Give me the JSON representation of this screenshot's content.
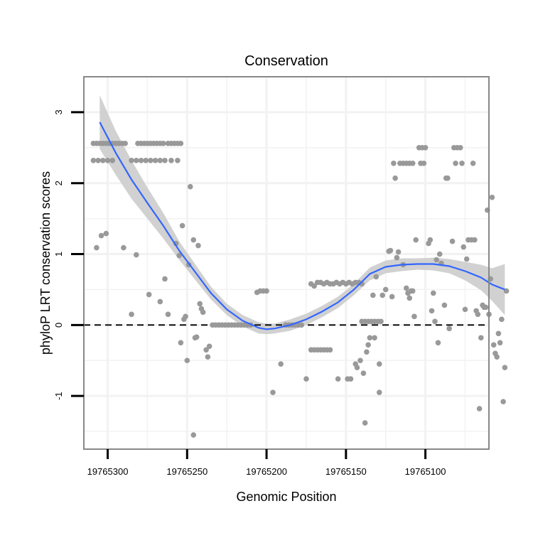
{
  "chart_data": {
    "type": "scatter",
    "title": "Conservation",
    "xlabel": "Genomic Position",
    "ylabel": "phyloP LRT conservation scores",
    "x_reversed": true,
    "xlim": [
      19765315,
      19765060
    ],
    "ylim": [
      -1.75,
      3.5
    ],
    "x_ticks": [
      19765300,
      19765250,
      19765200,
      19765150,
      19765100
    ],
    "x_tick_labels": [
      "19765300",
      "19765250",
      "19765200",
      "19765150",
      "19765100"
    ],
    "y_ticks": [
      -1,
      0,
      1,
      2,
      3
    ],
    "y_tick_labels": [
      "-1",
      "0",
      "1",
      "2",
      "3"
    ],
    "reference_line": {
      "y": 0,
      "style": "dashed"
    },
    "colors": {
      "points": "#999999",
      "smooth_line": "#3366ff",
      "ci_band": "#cccccc",
      "panel_border": "#888888",
      "grid": "#f2f2f2"
    },
    "points": [
      [
        19765309,
        2.56
      ],
      [
        19765307,
        2.56
      ],
      [
        19765305,
        2.56
      ],
      [
        19765303,
        2.56
      ],
      [
        19765301,
        2.56
      ],
      [
        19765299,
        2.56
      ],
      [
        19765297,
        2.56
      ],
      [
        19765295,
        2.56
      ],
      [
        19765293,
        2.56
      ],
      [
        19765291,
        2.56
      ],
      [
        19765289,
        2.56
      ],
      [
        19765309,
        2.32
      ],
      [
        19765306,
        2.32
      ],
      [
        19765303,
        2.32
      ],
      [
        19765300,
        2.32
      ],
      [
        19765297,
        2.32
      ],
      [
        19765281,
        2.56
      ],
      [
        19765279,
        2.56
      ],
      [
        19765277,
        2.56
      ],
      [
        19765275,
        2.56
      ],
      [
        19765273,
        2.56
      ],
      [
        19765271,
        2.56
      ],
      [
        19765269,
        2.56
      ],
      [
        19765267,
        2.56
      ],
      [
        19765265,
        2.56
      ],
      [
        19765262,
        2.56
      ],
      [
        19765260,
        2.56
      ],
      [
        19765258,
        2.56
      ],
      [
        19765256,
        2.56
      ],
      [
        19765254,
        2.56
      ],
      [
        19765285,
        2.32
      ],
      [
        19765282,
        2.32
      ],
      [
        19765279,
        2.32
      ],
      [
        19765276,
        2.32
      ],
      [
        19765273,
        2.32
      ],
      [
        19765270,
        2.32
      ],
      [
        19765267,
        2.32
      ],
      [
        19765264,
        2.32
      ],
      [
        19765260,
        2.32
      ],
      [
        19765256,
        2.32
      ],
      [
        19765307,
        1.09
      ],
      [
        19765304,
        1.26
      ],
      [
        19765301,
        1.29
      ],
      [
        19765290,
        1.09
      ],
      [
        19765282,
        0.99
      ],
      [
        19765285,
        0.15
      ],
      [
        19765274,
        0.43
      ],
      [
        19765267,
        0.33
      ],
      [
        19765264,
        0.65
      ],
      [
        19765262,
        0.15
      ],
      [
        19765257,
        1.15
      ],
      [
        19765255,
        0.98
      ],
      [
        19765253,
        1.4
      ],
      [
        19765252,
        0.08
      ],
      [
        19765251,
        0.12
      ],
      [
        19765254,
        -0.25
      ],
      [
        19765250,
        -0.5
      ],
      [
        19765249,
        0.85
      ],
      [
        19765248,
        1.95
      ],
      [
        19765246,
        1.2
      ],
      [
        19765244,
        -0.17
      ],
      [
        19765245,
        -0.18
      ],
      [
        19765243,
        1.12
      ],
      [
        19765242,
        0.3
      ],
      [
        19765241,
        0.23
      ],
      [
        19765240,
        0.18
      ],
      [
        19765238,
        -0.35
      ],
      [
        19765237,
        -0.45
      ],
      [
        19765236,
        -0.3
      ],
      [
        19765246,
        -1.55
      ],
      [
        19765234,
        0
      ],
      [
        19765232,
        0
      ],
      [
        19765230,
        0
      ],
      [
        19765228,
        0
      ],
      [
        19765226,
        0
      ],
      [
        19765224,
        0
      ],
      [
        19765222,
        0
      ],
      [
        19765220,
        0
      ],
      [
        19765218,
        0
      ],
      [
        19765216,
        0
      ],
      [
        19765214,
        0
      ],
      [
        19765212,
        0
      ],
      [
        19765210,
        0
      ],
      [
        19765206,
        0.46
      ],
      [
        19765204,
        0.48
      ],
      [
        19765202,
        0.48
      ],
      [
        19765200,
        0.48
      ],
      [
        19765196,
        -0.95
      ],
      [
        19765191,
        -0.55
      ],
      [
        19765188,
        0
      ],
      [
        19765186,
        0
      ],
      [
        19765184,
        0
      ],
      [
        19765182,
        0
      ],
      [
        19765180,
        0
      ],
      [
        19765178,
        0
      ],
      [
        19765175,
        -0.76
      ],
      [
        19765172,
        0.58
      ],
      [
        19765170,
        0.55
      ],
      [
        19765168,
        0.6
      ],
      [
        19765166,
        0.6
      ],
      [
        19765164,
        0.58
      ],
      [
        19765162,
        0.6
      ],
      [
        19765160,
        0.58
      ],
      [
        19765158,
        0.58
      ],
      [
        19765156,
        0.6
      ],
      [
        19765154,
        0.58
      ],
      [
        19765152,
        0.6
      ],
      [
        19765150,
        0.58
      ],
      [
        19765148,
        0.6
      ],
      [
        19765146,
        0.58
      ],
      [
        19765144,
        0.6
      ],
      [
        19765142,
        0.6
      ],
      [
        19765140,
        0.58
      ],
      [
        19765172,
        -0.35
      ],
      [
        19765170,
        -0.35
      ],
      [
        19765168,
        -0.35
      ],
      [
        19765166,
        -0.35
      ],
      [
        19765164,
        -0.35
      ],
      [
        19765162,
        -0.35
      ],
      [
        19765160,
        -0.35
      ],
      [
        19765155,
        -0.76
      ],
      [
        19765149,
        -0.76
      ],
      [
        19765147,
        -0.76
      ],
      [
        19765144,
        -0.55
      ],
      [
        19765143,
        -0.6
      ],
      [
        19765141,
        -0.5
      ],
      [
        19765139,
        -0.68
      ],
      [
        19765138,
        -1.38
      ],
      [
        19765137,
        -0.38
      ],
      [
        19765136,
        -0.28
      ],
      [
        19765135,
        -0.18
      ],
      [
        19765133,
        0.42
      ],
      [
        19765132,
        -0.18
      ],
      [
        19765131,
        0.68
      ],
      [
        19765129,
        -0.55
      ],
      [
        19765129,
        -0.95
      ],
      [
        19765140,
        0.05
      ],
      [
        19765138,
        0.05
      ],
      [
        19765136,
        0.05
      ],
      [
        19765134,
        0.05
      ],
      [
        19765132,
        0.05
      ],
      [
        19765130,
        0.05
      ],
      [
        19765128,
        0.05
      ],
      [
        19765127,
        0.42
      ],
      [
        19765125,
        0.5
      ],
      [
        19765123,
        1.04
      ],
      [
        19765122,
        1.05
      ],
      [
        19765121,
        0.4
      ],
      [
        19765120,
        2.28
      ],
      [
        19765119,
        2.07
      ],
      [
        19765118,
        0.95
      ],
      [
        19765117,
        1.03
      ],
      [
        19765116,
        2.28
      ],
      [
        19765114,
        2.28
      ],
      [
        19765112,
        2.28
      ],
      [
        19765110,
        2.28
      ],
      [
        19765108,
        2.28
      ],
      [
        19765114,
        0.85
      ],
      [
        19765112,
        0.52
      ],
      [
        19765111,
        0.45
      ],
      [
        19765110,
        0.38
      ],
      [
        19765109,
        0.48
      ],
      [
        19765108,
        0.48
      ],
      [
        19765107,
        0.12
      ],
      [
        19765106,
        1.2
      ],
      [
        19765103,
        2.28
      ],
      [
        19765101,
        2.28
      ],
      [
        19765104,
        2.5
      ],
      [
        19765102,
        2.5
      ],
      [
        19765100,
        2.5
      ],
      [
        19765098,
        1.15
      ],
      [
        19765097,
        1.2
      ],
      [
        19765096,
        0.2
      ],
      [
        19765095,
        0.45
      ],
      [
        19765094,
        0.05
      ],
      [
        19765093,
        0.92
      ],
      [
        19765092,
        -0.25
      ],
      [
        19765091,
        1.0
      ],
      [
        19765090,
        0.87
      ],
      [
        19765088,
        0.28
      ],
      [
        19765087,
        2.07
      ],
      [
        19765086,
        2.07
      ],
      [
        19765085,
        -0.05
      ],
      [
        19765083,
        1.18
      ],
      [
        19765082,
        2.5
      ],
      [
        19765081,
        2.28
      ],
      [
        19765080,
        2.5
      ],
      [
        19765078,
        2.5
      ],
      [
        19765077,
        2.28
      ],
      [
        19765076,
        1.1
      ],
      [
        19765075,
        0.22
      ],
      [
        19765074,
        0.93
      ],
      [
        19765073,
        1.2
      ],
      [
        19765071,
        1.2
      ],
      [
        19765070,
        2.28
      ],
      [
        19765069,
        1.2
      ],
      [
        19765068,
        0.2
      ],
      [
        19765067,
        0.15
      ],
      [
        19765066,
        -1.18
      ],
      [
        19765065,
        -0.18
      ],
      [
        19765064,
        0.28
      ],
      [
        19765063,
        0.25
      ],
      [
        19765062,
        0.25
      ],
      [
        19765061,
        1.62
      ],
      [
        19765060,
        0.15
      ],
      [
        19765059,
        0.65
      ],
      [
        19765058,
        1.8
      ],
      [
        19765057,
        -0.28
      ],
      [
        19765056,
        -0.4
      ],
      [
        19765055,
        -0.45
      ],
      [
        19765054,
        -0.12
      ],
      [
        19765053,
        -0.25
      ],
      [
        19765052,
        0.08
      ],
      [
        19765051,
        -1.08
      ],
      [
        19765050,
        -0.6
      ],
      [
        19765049,
        0.48
      ]
    ],
    "smooth_fit": {
      "x": [
        19765305,
        19765295,
        19765285,
        19765275,
        19765265,
        19765255,
        19765245,
        19765235,
        19765225,
        19765215,
        19765205,
        19765200,
        19765195,
        19765185,
        19765175,
        19765165,
        19765155,
        19765145,
        19765135,
        19765125,
        19765115,
        19765105,
        19765095,
        19765085,
        19765075,
        19765065,
        19765058,
        19765050
      ],
      "y": [
        2.86,
        2.43,
        2.05,
        1.72,
        1.4,
        1.05,
        0.75,
        0.45,
        0.22,
        0.06,
        -0.04,
        -0.06,
        -0.05,
        0.0,
        0.08,
        0.19,
        0.32,
        0.5,
        0.72,
        0.82,
        0.85,
        0.86,
        0.86,
        0.83,
        0.76,
        0.67,
        0.57,
        0.5
      ],
      "ci_low": [
        2.48,
        2.12,
        1.78,
        1.5,
        1.22,
        0.92,
        0.64,
        0.36,
        0.14,
        -0.02,
        -0.12,
        -0.13,
        -0.12,
        -0.08,
        0.0,
        0.11,
        0.24,
        0.42,
        0.63,
        0.73,
        0.76,
        0.78,
        0.77,
        0.73,
        0.63,
        0.49,
        0.34,
        0.14
      ],
      "ci_high": [
        3.24,
        2.74,
        2.32,
        1.94,
        1.58,
        1.18,
        0.86,
        0.54,
        0.3,
        0.14,
        0.04,
        0.02,
        0.02,
        0.08,
        0.16,
        0.27,
        0.4,
        0.58,
        0.81,
        0.91,
        0.94,
        0.94,
        0.95,
        0.93,
        0.89,
        0.85,
        0.8,
        0.86
      ]
    }
  }
}
